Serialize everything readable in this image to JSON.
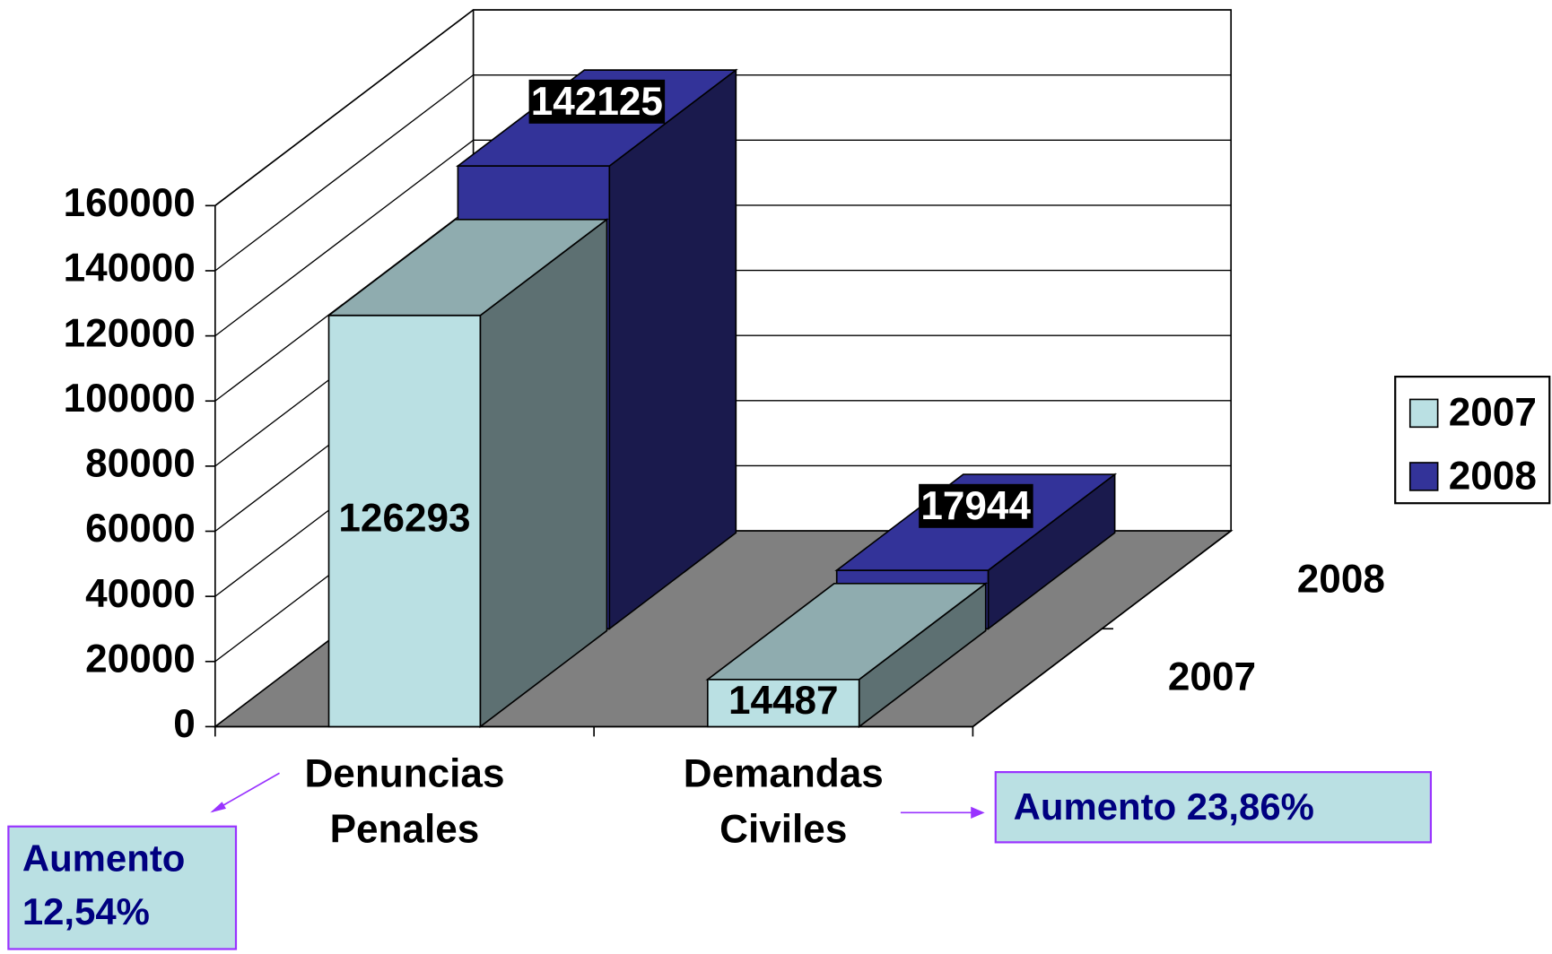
{
  "chart_data": {
    "type": "bar3d",
    "categories": [
      "Denuncias Penales",
      "Demandas Civiles"
    ],
    "series": [
      {
        "name": "2007",
        "color": "#bae0e3",
        "values": [
          126293,
          14487
        ]
      },
      {
        "name": "2008",
        "color": "#333399",
        "values": [
          142125,
          17944
        ]
      }
    ],
    "ylim": [
      0,
      160000
    ],
    "yticks": [
      0,
      20000,
      40000,
      60000,
      80000,
      100000,
      120000,
      140000,
      160000
    ],
    "grid": true,
    "legend": "right",
    "annotations": [
      {
        "text": "Aumento 12,54%"
      },
      {
        "text": "Aumento 23,86%"
      }
    ]
  }
}
